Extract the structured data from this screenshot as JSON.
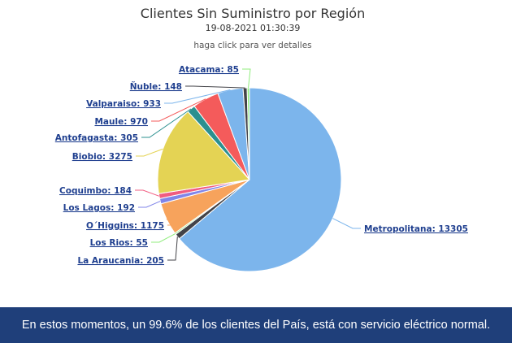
{
  "header": {
    "title": "Clientes Sin Suministro por Región",
    "subtitle": "19-08-2021 01:30:39",
    "hint": "haga click para ver detalles"
  },
  "chart_data": {
    "type": "pie",
    "title": "Clientes Sin Suministro por Región",
    "subtitle": "19-08-2021 01:30:39",
    "slices": [
      {
        "name": "Metropolitana",
        "value": 13305,
        "color": "#7cb5ec",
        "label": "Metropolitana: 13305"
      },
      {
        "name": "La Araucania",
        "value": 205,
        "color": "#434348",
        "label": "La Araucania: 205"
      },
      {
        "name": "Los Rios",
        "value": 55,
        "color": "#90ed7d",
        "label": "Los Rios: 55"
      },
      {
        "name": "O´Higgins",
        "value": 1175,
        "color": "#f7a35c",
        "label": "O´Higgins: 1175"
      },
      {
        "name": "Los Lagos",
        "value": 192,
        "color": "#8085e9",
        "label": "Los Lagos: 192"
      },
      {
        "name": "Coquimbo",
        "value": 184,
        "color": "#f15c80",
        "label": "Coquimbo: 184"
      },
      {
        "name": "Biobio",
        "value": 3275,
        "color": "#e4d354",
        "label": "Biobio: 3275"
      },
      {
        "name": "Antofagasta",
        "value": 305,
        "color": "#2b908f",
        "label": "Antofagasta: 305"
      },
      {
        "name": "Maule",
        "value": 970,
        "color": "#f45b5b",
        "label": "Maule: 970"
      },
      {
        "name": "Valparaiso",
        "value": 933,
        "color": "#7cb5ec",
        "label": "Valparaiso: 933"
      },
      {
        "name": "Ñuble",
        "value": 148,
        "color": "#434348",
        "label": "Ñuble: 148"
      },
      {
        "name": "Atacama",
        "value": 85,
        "color": "#90ed7d",
        "label": "Atacama: 85"
      }
    ]
  },
  "footer": {
    "text": "En estos momentos, un 99.6% de los clientes del País, está con servicio eléctrico normal."
  }
}
